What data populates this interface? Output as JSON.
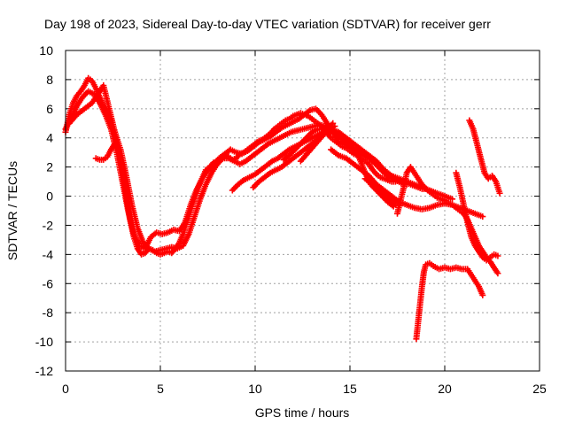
{
  "chart_data": {
    "type": "scatter",
    "title": "Day 198 of 2023, Sidereal Day-to-day VTEC variation (SDTVAR) for receiver gerr",
    "xlabel": "GPS time / hours",
    "ylabel": "SDTVAR / TECUs",
    "xlim": [
      0,
      25
    ],
    "ylim": [
      -12,
      10
    ],
    "xticks": [
      0,
      5,
      10,
      15,
      20,
      25
    ],
    "yticks": [
      -12,
      -10,
      -8,
      -6,
      -4,
      -2,
      0,
      2,
      4,
      6,
      8,
      10
    ],
    "grid": true,
    "marker": "+",
    "color": "#ff0000",
    "series": [
      {
        "x": [
          0.0,
          0.2,
          0.4,
          0.6,
          0.8,
          1.0,
          1.2,
          1.4,
          1.6,
          1.8,
          2.0,
          2.2,
          2.4,
          2.6,
          2.8,
          3.0,
          3.2,
          3.4,
          3.6,
          3.8,
          4.0,
          4.2,
          4.4,
          4.6,
          4.8,
          5.0,
          5.2,
          5.4,
          5.6,
          5.8,
          6.0,
          6.2,
          6.4,
          6.6,
          6.8,
          7.0,
          7.2,
          7.4,
          7.6,
          7.8,
          8.0,
          8.2,
          8.4,
          8.6,
          8.8,
          9.0,
          9.2,
          9.4,
          9.6,
          9.8,
          10.0,
          10.2,
          10.4,
          10.6,
          10.8,
          11.0,
          11.2,
          11.4,
          11.6,
          11.8,
          12.0,
          12.2,
          12.4,
          12.6,
          12.8,
          13.0,
          13.2,
          13.4,
          13.6,
          13.8,
          14.0,
          14.2,
          14.4,
          14.6,
          14.8,
          15.0,
          15.2,
          15.4,
          15.6,
          15.8,
          16.0,
          16.2,
          16.4,
          16.6,
          16.8,
          17.0,
          17.2,
          17.4,
          17.6,
          17.8,
          18.0,
          18.2,
          18.4,
          18.6,
          18.8,
          19.0,
          19.2,
          19.4,
          19.6,
          19.8,
          20.0,
          20.2,
          20.4,
          20.6,
          20.8,
          21.0,
          21.2,
          21.4,
          21.6,
          21.8,
          22.0,
          22.2,
          22.4,
          22.6,
          22.8
        ],
        "y": [
          4.4,
          5.6,
          6.4,
          6.9,
          7.2,
          7.6,
          8.1,
          7.9,
          7.4,
          6.8,
          6.2,
          5.8,
          5.2,
          4.4,
          3.2,
          1.6,
          0.0,
          -1.6,
          -2.8,
          -3.6,
          -4.0,
          -3.9,
          -3.6,
          -3.7,
          -3.9,
          -4.0,
          -3.9,
          -3.8,
          -3.9,
          -3.6,
          -3.2,
          -2.6,
          -1.8,
          -1.0,
          -0.2,
          0.6,
          1.2,
          1.8,
          2.0,
          2.3,
          2.2,
          2.6,
          2.8,
          2.7,
          2.5,
          2.6,
          2.9,
          3.0,
          3.2,
          3.4,
          3.6,
          3.8,
          3.9,
          4.1,
          4.3,
          4.6,
          4.8,
          5.0,
          5.2,
          5.3,
          5.5,
          5.6,
          5.7,
          5.6,
          5.5,
          5.3,
          5.1,
          4.9,
          4.6,
          4.3,
          4.0,
          3.8,
          3.6,
          3.4,
          3.3,
          3.1,
          2.9,
          2.8,
          2.6,
          2.4,
          2.2,
          1.8,
          1.5,
          1.3,
          1.2,
          1.1,
          1.0,
          1.0,
          1.1,
          1.0,
          0.9,
          0.8,
          0.7,
          0.6,
          0.5,
          0.5,
          0.3,
          0.1,
          -0.1,
          -0.2,
          -0.3,
          -0.5,
          -0.6,
          -0.8,
          -1.0,
          -1.2,
          -1.6,
          -2.2,
          -2.8,
          -3.4,
          -3.8,
          -4.2,
          -4.5,
          -4.9,
          -5.3
        ]
      },
      {
        "x": [
          0.0,
          0.3,
          0.6,
          0.9,
          1.2,
          1.5,
          1.8,
          2.1,
          2.4,
          2.7,
          3.0,
          3.3,
          3.6,
          3.9,
          4.2,
          4.5,
          4.8,
          5.1,
          5.4,
          5.7,
          6.0,
          6.3,
          6.6,
          6.9,
          7.2,
          7.5,
          7.8,
          8.1,
          8.4,
          8.7,
          9.0,
          9.3,
          9.6,
          9.9,
          10.2,
          10.5,
          10.8,
          11.1,
          11.4,
          11.7,
          12.0,
          12.3,
          12.6,
          12.9,
          13.2,
          13.5,
          13.8,
          14.1,
          14.4,
          14.7,
          15.0,
          15.3,
          15.6,
          15.9,
          16.2,
          16.5,
          16.8,
          17.1,
          17.4,
          17.7,
          18.0
        ],
        "y": [
          4.6,
          5.4,
          6.2,
          6.8,
          7.2,
          7.0,
          6.4,
          5.6,
          4.6,
          3.0,
          1.0,
          -1.0,
          -2.6,
          -3.4,
          -3.6,
          -2.8,
          -2.5,
          -2.6,
          -2.5,
          -2.3,
          -2.4,
          -1.8,
          -0.6,
          0.4,
          1.2,
          1.8,
          2.2,
          2.6,
          2.9,
          3.2,
          3.0,
          2.9,
          3.1,
          3.4,
          3.7,
          3.9,
          4.1,
          4.4,
          4.7,
          4.9,
          5.1,
          5.3,
          5.6,
          5.9,
          6.0,
          5.6,
          5.0,
          4.4,
          3.8,
          3.6,
          3.4,
          3.2,
          3.0,
          2.8,
          2.4,
          2.0,
          1.6,
          1.3,
          1.1,
          0.9,
          0.8
        ]
      },
      {
        "x": [
          0.2,
          0.6,
          1.0,
          1.4,
          1.7,
          2.0,
          2.3,
          2.6,
          2.9,
          3.2,
          3.5,
          3.8,
          4.1,
          4.4,
          4.7,
          5.0,
          5.3,
          5.6,
          5.9,
          6.2,
          6.5,
          6.8,
          7.1,
          7.4,
          7.7,
          8.0,
          8.3,
          8.6,
          8.9,
          9.2,
          9.5,
          9.8,
          10.1,
          10.4,
          10.7,
          11.0,
          11.3,
          11.6,
          11.9,
          12.2,
          12.5,
          12.8,
          13.1,
          13.4,
          13.7,
          14.0,
          14.3,
          14.6,
          14.9,
          15.2,
          15.5,
          15.8,
          16.1,
          16.4,
          16.7,
          17.0,
          17.3
        ],
        "y": [
          5.0,
          5.6,
          6.0,
          6.4,
          7.0,
          7.6,
          6.0,
          4.4,
          3.2,
          1.4,
          -0.6,
          -2.2,
          -3.2,
          -3.6,
          -3.8,
          -3.7,
          -3.6,
          -3.5,
          -3.6,
          -3.4,
          -2.6,
          -1.4,
          -0.2,
          0.8,
          1.6,
          2.2,
          2.6,
          2.6,
          2.4,
          2.2,
          2.4,
          2.7,
          3.0,
          3.3,
          3.6,
          3.8,
          4.0,
          4.2,
          4.4,
          4.5,
          4.6,
          4.7,
          4.8,
          4.9,
          4.8,
          4.6,
          4.3,
          4.0,
          3.6,
          3.2,
          2.6,
          1.6,
          0.8,
          0.4,
          0.0,
          -0.4,
          -0.7
        ]
      },
      {
        "x": [
          1.6,
          1.8,
          2.0,
          2.2,
          2.4,
          2.6
        ],
        "y": [
          2.6,
          2.5,
          2.5,
          2.7,
          3.2,
          3.6
        ]
      },
      {
        "x": [
          8.8,
          9.1,
          9.4,
          9.7,
          10.0,
          10.3,
          10.6,
          10.9,
          11.2,
          11.5,
          11.8,
          12.1,
          12.4,
          12.7,
          13.0,
          13.3,
          13.6,
          13.9,
          14.2
        ],
        "y": [
          0.4,
          0.8,
          1.1,
          1.3,
          1.5,
          1.8,
          2.1,
          2.4,
          2.6,
          2.9,
          3.2,
          3.4,
          3.6,
          3.8,
          4.0,
          4.2,
          4.4,
          4.6,
          4.8
        ]
      },
      {
        "x": [
          9.9,
          10.2,
          10.5,
          10.8,
          11.1,
          11.4,
          11.7,
          12.0,
          12.3,
          12.6,
          12.9,
          13.2,
          13.5,
          13.8,
          14.1
        ],
        "y": [
          0.6,
          1.0,
          1.3,
          1.6,
          1.8,
          2.0,
          2.3,
          2.6,
          2.9,
          3.2,
          3.5,
          3.8,
          4.2,
          4.6,
          5.0
        ]
      },
      {
        "x": [
          11.5,
          11.8,
          12.1,
          12.4,
          12.7,
          13.0,
          13.3,
          13.6,
          13.9,
          14.2,
          14.5,
          14.8,
          15.1,
          15.4,
          15.7,
          16.0,
          16.3
        ],
        "y": [
          2.5,
          2.8,
          3.2,
          3.6,
          4.0,
          4.4,
          4.6,
          4.6,
          4.5,
          4.3,
          4.0,
          3.6,
          3.3,
          3.0,
          2.8,
          2.6,
          2.3
        ]
      },
      {
        "x": [
          12.4,
          12.8,
          13.2,
          13.6,
          14.0,
          14.4,
          14.8,
          15.2,
          15.6,
          16.0,
          16.4,
          16.8,
          17.2,
          17.6,
          18.0,
          18.4,
          18.8,
          19.2,
          19.6,
          20.0,
          20.4
        ],
        "y": [
          2.4,
          3.0,
          3.6,
          4.2,
          4.6,
          4.4,
          4.0,
          3.6,
          3.2,
          2.8,
          2.4,
          1.8,
          1.4,
          1.2,
          1.0,
          0.8,
          0.6,
          0.4,
          0.2,
          0.0,
          -0.2
        ]
      },
      {
        "x": [
          14.0,
          14.4,
          14.8,
          15.2,
          15.6,
          16.0,
          16.4,
          16.8,
          17.2,
          17.6,
          18.0,
          18.4,
          18.8,
          19.2,
          19.6,
          20.0,
          20.4,
          20.8,
          21.2,
          21.6,
          22.0
        ],
        "y": [
          3.2,
          2.8,
          2.6,
          2.2,
          1.8,
          1.4,
          0.8,
          0.4,
          0.0,
          -0.4,
          -0.6,
          -0.8,
          -0.9,
          -0.8,
          -0.6,
          -0.5,
          -0.6,
          -0.8,
          -1.0,
          -1.2,
          -1.4
        ]
      },
      {
        "x": [
          15.8,
          16.2,
          16.6,
          17.0,
          17.4
        ],
        "y": [
          1.2,
          0.8,
          0.4,
          0.0,
          -0.6
        ]
      },
      {
        "x": [
          17.5,
          17.8,
          18.0,
          18.2,
          18.5,
          18.8,
          19.1,
          19.4
        ],
        "y": [
          -1.2,
          0.4,
          1.6,
          2.0,
          1.4,
          0.8,
          0.4,
          0.2
        ]
      },
      {
        "x": [
          18.5,
          18.6,
          18.7,
          18.8,
          18.9,
          19.0,
          19.2,
          19.4,
          19.7,
          20.0,
          20.3,
          20.6,
          20.9,
          21.2,
          21.5,
          21.8,
          22.0
        ],
        "y": [
          -9.8,
          -8.6,
          -7.4,
          -6.2,
          -5.2,
          -4.7,
          -4.6,
          -4.8,
          -5.0,
          -4.9,
          -5.0,
          -4.9,
          -5.0,
          -5.0,
          -5.6,
          -6.2,
          -6.8
        ]
      },
      {
        "x": [
          20.6,
          20.8,
          21.0,
          21.2,
          21.4,
          21.6,
          21.8,
          22.0,
          22.2,
          22.4,
          22.6,
          22.8
        ],
        "y": [
          1.6,
          0.6,
          -0.6,
          -1.8,
          -2.8,
          -3.4,
          -3.8,
          -4.2,
          -4.4,
          -4.2,
          -4.0,
          -4.1
        ]
      },
      {
        "x": [
          21.3,
          21.5,
          21.7,
          21.9,
          22.1,
          22.3,
          22.5,
          22.7,
          22.9
        ],
        "y": [
          5.2,
          4.6,
          3.6,
          2.6,
          1.6,
          1.2,
          1.4,
          1.0,
          0.2
        ]
      }
    ]
  }
}
